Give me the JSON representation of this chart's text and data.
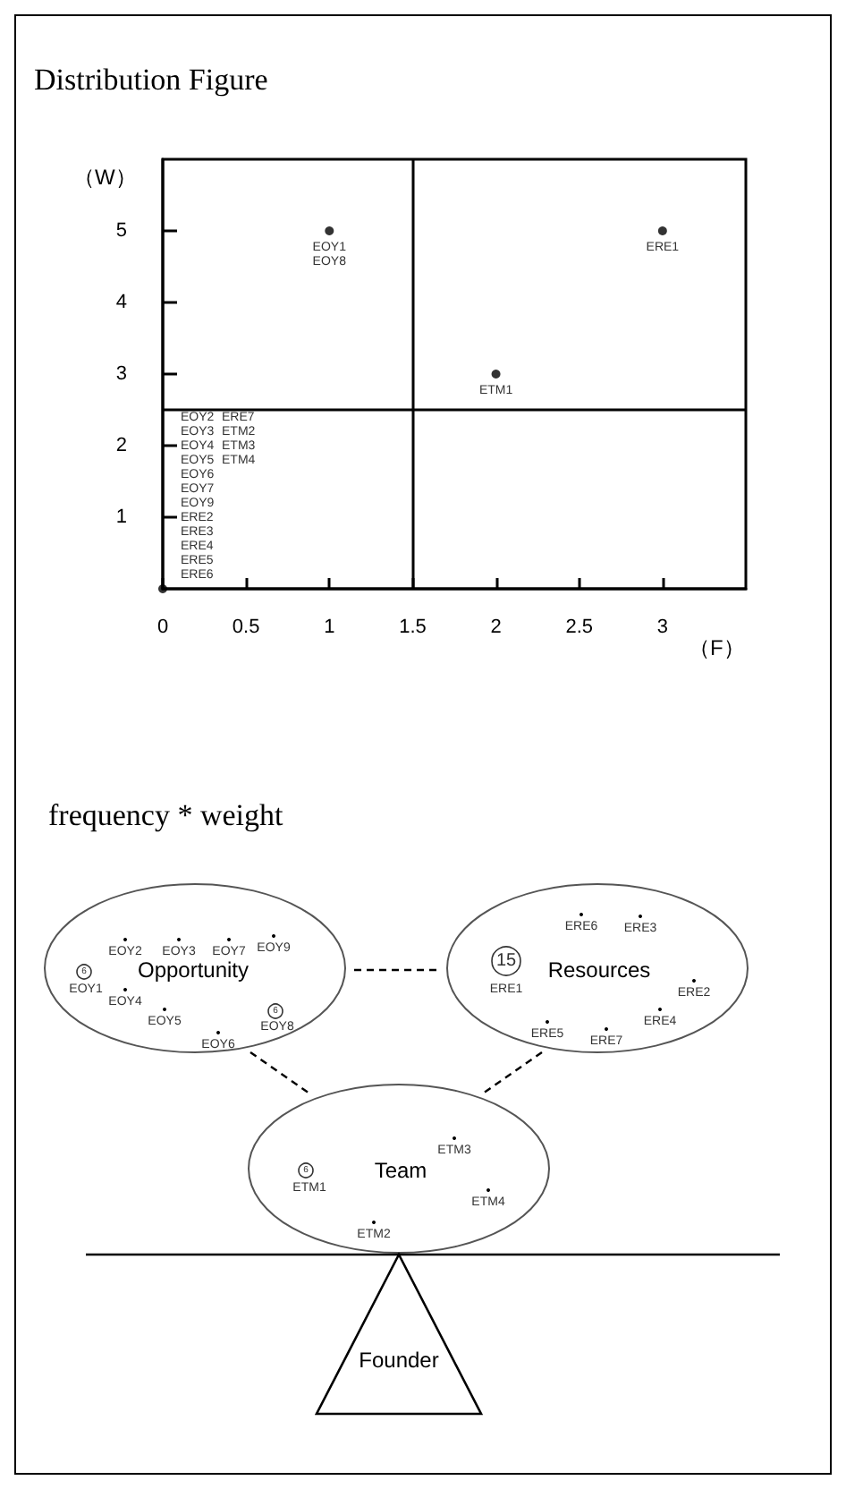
{
  "chart_data": [
    {
      "type": "scatter",
      "title": "Distribution Figure",
      "xlabel": "（F）",
      "ylabel": "（W）",
      "x": [
        0,
        1,
        2,
        3
      ],
      "values": [
        0,
        5,
        3,
        5
      ],
      "color": "#000000",
      "marker": "circle",
      "xlim": [
        0,
        3.5
      ],
      "xticks": [
        0,
        0.5,
        1,
        1.5,
        2,
        2.5,
        3
      ],
      "ylim": [
        0,
        6
      ],
      "yticks": [
        1,
        2,
        3,
        4,
        5
      ],
      "grid": false,
      "ref_lines": [
        {
          "axis": "x",
          "value": 1.5,
          "color": "#000000"
        },
        {
          "axis": "y",
          "value": 2.5,
          "color": "#000000"
        }
      ],
      "annotations": [
        {
          "text": "EOY1",
          "x": 1,
          "y": 5
        },
        {
          "text": "EOY8",
          "x": 1,
          "y": 5
        },
        {
          "text": "ERE1",
          "x": 3,
          "y": 5
        },
        {
          "text": "ETM1",
          "x": 2,
          "y": 3
        },
        "EOY2",
        "EOY3",
        "EOY4",
        "EOY5",
        "EOY6",
        "EOY7",
        "EOY9",
        "ERE2",
        "ERE3",
        "ERE4",
        "ERE5",
        "ERE6",
        "ERE7",
        "ETM2",
        "ETM3",
        "ETM4"
      ]
    },
    {
      "type": "other",
      "title": "frequency * weight",
      "annotations": [
        "Opportunity",
        "Resources",
        "Team",
        "Founder",
        "EOY2",
        "EOY3",
        "EOY7",
        "EOY9",
        "6",
        "EOY1",
        "EOY4",
        "EOY5",
        "EOY6",
        "6",
        "EOY8",
        "ERE6",
        "ERE3",
        "15",
        "ERE1",
        "ERE2",
        "ERE4",
        "ERE5",
        "ERE7",
        "ETM3",
        "6",
        "ETM1",
        "ETM4",
        "ETM2"
      ]
    }
  ]
}
